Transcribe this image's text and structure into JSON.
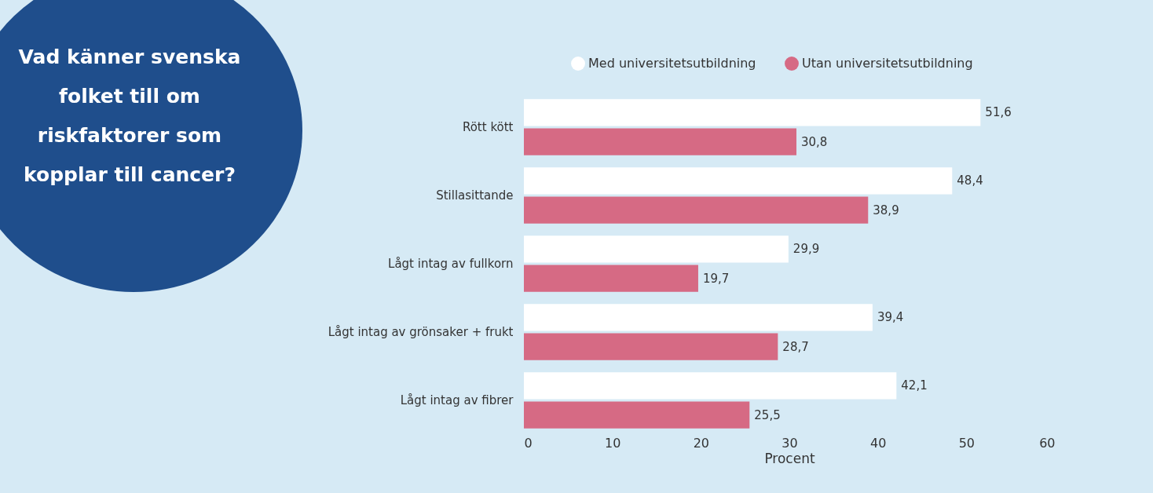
{
  "chart_data": {
    "type": "bar",
    "orientation": "horizontal",
    "title": "Vad känner svenska folket till om riskfaktorer som kopplar till cancer?",
    "xlabel": "Procent",
    "categories": [
      "Rött kött",
      "Stillasittande",
      "Lågt intag av fullkorn",
      "Lågt intag av grönsaker + frukt",
      "Lågt intag av fibrer"
    ],
    "series": [
      {
        "name": "Med universitetsutbildning",
        "color": "#ffffff",
        "values": [
          51.6,
          48.4,
          29.9,
          39.4,
          42.1
        ],
        "value_labels": [
          "51,6",
          "48,4",
          "29,9",
          "39,4",
          "42,1"
        ]
      },
      {
        "name": "Utan universitetsutbildning",
        "color": "#d66a84",
        "values": [
          30.8,
          38.9,
          19.7,
          28.7,
          25.5
        ],
        "value_labels": [
          "30,8",
          "38,9",
          "19,7",
          "28,7",
          "25,5"
        ]
      }
    ],
    "xlim": [
      0,
      60
    ],
    "xticks": [
      0,
      10,
      20,
      30,
      40,
      50,
      60
    ],
    "grid": false,
    "legend": "top"
  }
}
